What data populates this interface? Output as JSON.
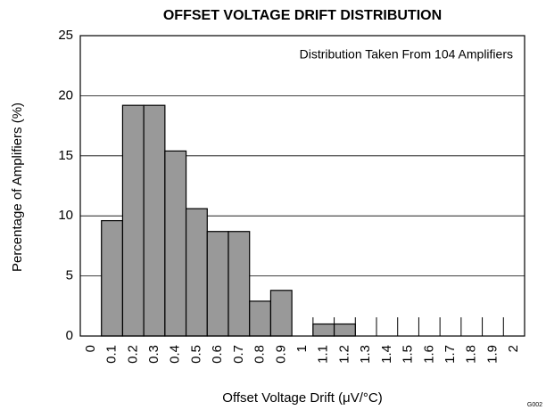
{
  "chart_data": {
    "type": "bar",
    "title": "OFFSET VOLTAGE DRIFT DISTRIBUTION",
    "annotation": "Distribution Taken From 104 Amplifiers",
    "x_label": "Offset Voltage Drift (μV/°C)",
    "y_label": "Percentage of Amplifiers (%)",
    "note": "G002",
    "categories": [
      "0",
      "0.1",
      "0.2",
      "0.3",
      "0.4",
      "0.5",
      "0.6",
      "0.7",
      "0.8",
      "0.9",
      "1",
      "1.1",
      "1.2",
      "1.3",
      "1.4",
      "1.5",
      "1.6",
      "1.7",
      "1.8",
      "1.9",
      "2"
    ],
    "values": [
      0,
      9.6,
      19.2,
      19.2,
      15.4,
      10.6,
      8.7,
      8.7,
      2.9,
      3.8,
      0,
      1.0,
      1.0,
      0,
      0,
      0,
      0,
      0,
      0,
      0,
      0
    ],
    "color": "#999999",
    "ylim": [
      0,
      25
    ],
    "yticks": [
      0,
      5,
      10,
      15,
      20,
      25
    ],
    "grid": true
  }
}
